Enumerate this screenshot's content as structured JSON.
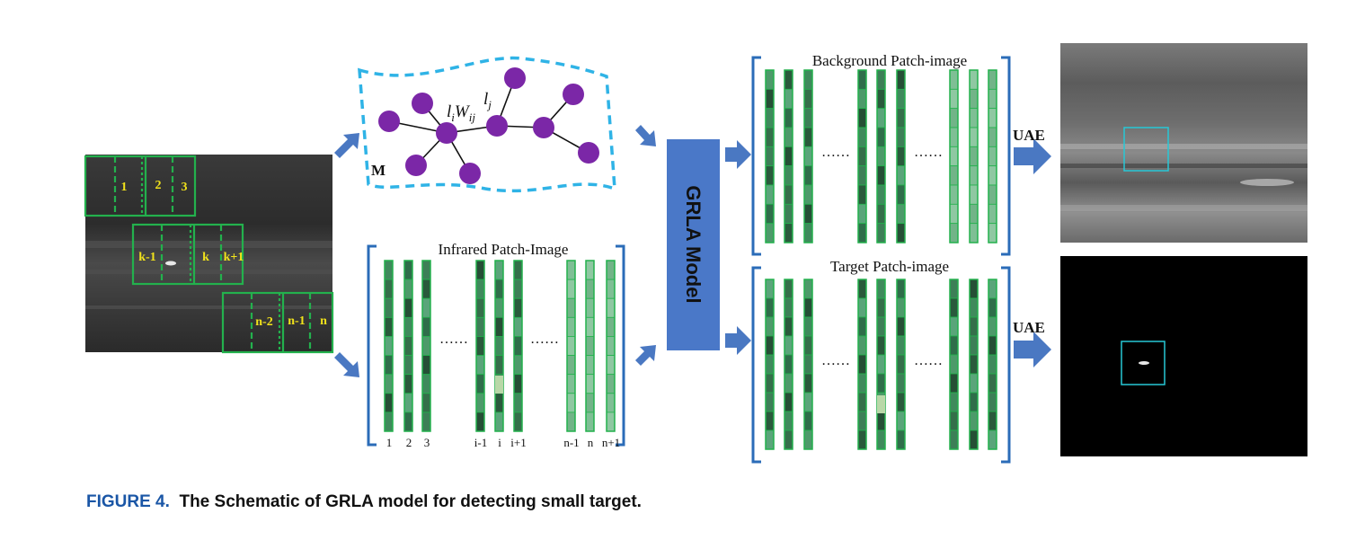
{
  "colors": {
    "node": "#7b27a7",
    "manifold": "#2fb3e6",
    "patch_border": "#23b14d",
    "bracket": "#2b6cb8",
    "arrow": "#4a78c2",
    "model_box": "#4a78c8",
    "highlight_box": "#27c7d6",
    "caption_label": "#1a56a6"
  },
  "input_image": {
    "patch_labels": [
      "1",
      "2",
      "3",
      "k-1",
      "k",
      "k+1",
      "n-2",
      "n-1",
      "n"
    ]
  },
  "manifold": {
    "label": "M",
    "edge_labels": [
      "l",
      "i",
      "W",
      "ij",
      "l",
      "j"
    ]
  },
  "infrared_patch_image": {
    "title": "Infrared Patch-Image",
    "column_labels": [
      "1",
      "2",
      "3",
      "i-1",
      "i",
      "i+1",
      "n-1",
      "n",
      "n+1"
    ],
    "ellipsis": "……"
  },
  "model": {
    "label": "GRLA Model"
  },
  "background_patch_image": {
    "title": "Background Patch-image",
    "ellipsis": "……"
  },
  "target_patch_image": {
    "title": "Target Patch-image",
    "ellipsis": "……"
  },
  "outputs": {
    "background_transform_label": "UAE",
    "target_transform_label": "UAE"
  },
  "caption": {
    "label": "FIGURE 4.",
    "text": "The Schematic of GRLA model for detecting small target."
  }
}
